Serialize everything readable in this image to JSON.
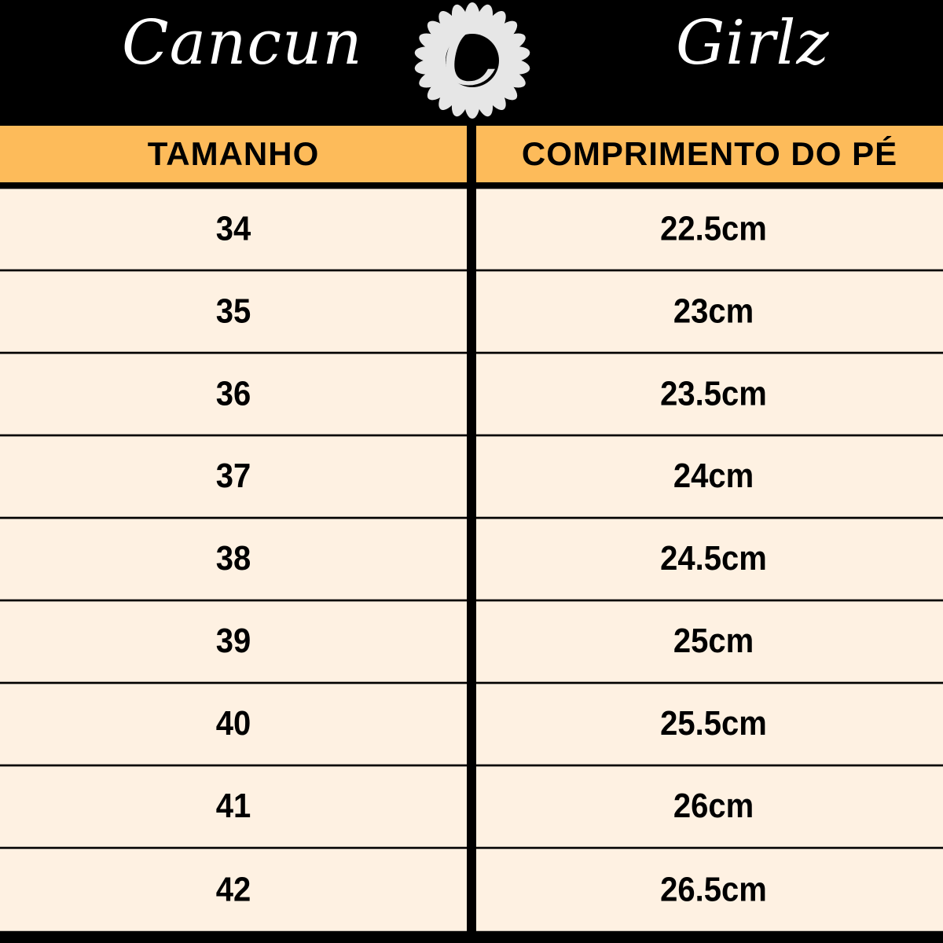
{
  "brand": {
    "left": "Cancun",
    "right": "Girlz",
    "logo_letter": "C"
  },
  "colors": {
    "header_bg": "#000000",
    "column_header_bg": "#FDBB5A",
    "row_bg": "#FEF1E2",
    "text": "#000000"
  },
  "table": {
    "headers": [
      "TAMANHO",
      "COMPRIMENTO DO PÉ"
    ],
    "rows": [
      {
        "size": "34",
        "length": "22.5cm"
      },
      {
        "size": "35",
        "length": "23cm"
      },
      {
        "size": "36",
        "length": "23.5cm"
      },
      {
        "size": "37",
        "length": "24cm"
      },
      {
        "size": "38",
        "length": "24.5cm"
      },
      {
        "size": "39",
        "length": "25cm"
      },
      {
        "size": "40",
        "length": "25.5cm"
      },
      {
        "size": "41",
        "length": "26cm"
      },
      {
        "size": "42",
        "length": "26.5cm"
      }
    ]
  }
}
